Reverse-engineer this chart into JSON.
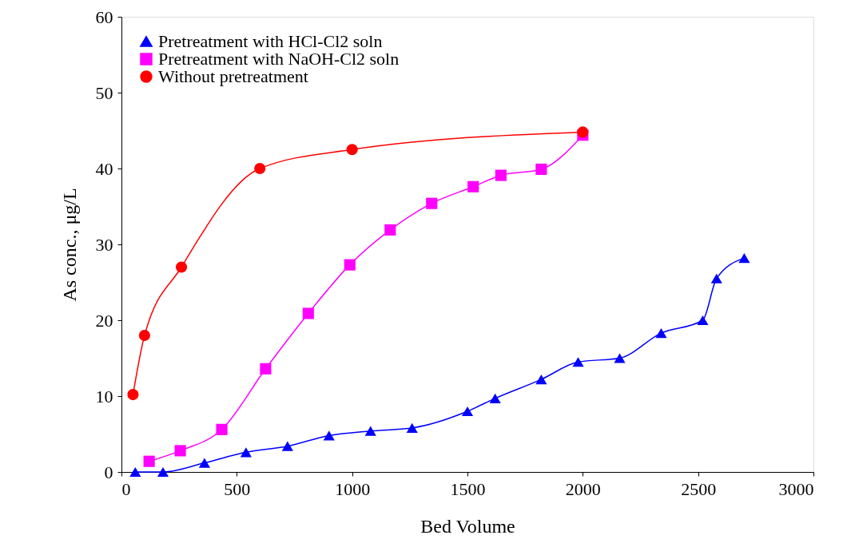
{
  "chart_data": {
    "type": "line",
    "xlabel": "Bed Volume",
    "ylabel": "As conc., μg/L",
    "xlim": [
      0,
      3000
    ],
    "xticks": [
      0,
      500,
      1000,
      1500,
      2000,
      2500,
      3000
    ],
    "ylim": [
      0,
      60
    ],
    "yticks": [
      0,
      10,
      20,
      30,
      40,
      50,
      60
    ],
    "grid": false,
    "legend": "top left",
    "line_style": "solid",
    "series": [
      {
        "name": "Pretreatment with HCl-Cl2 soln",
        "color": "#0000ff",
        "marker": "triangle",
        "x": [
          60,
          180,
          360,
          540,
          720,
          900,
          1080,
          1260,
          1500,
          1620,
          1820,
          1980,
          2160,
          2340,
          2520,
          2580,
          2700
        ],
        "values": [
          0,
          0,
          1.2,
          2.6,
          3.4,
          4.8,
          5.4,
          5.8,
          8,
          9.7,
          12.2,
          14.5,
          15,
          18.3,
          20,
          25.5,
          28.2
        ]
      },
      {
        "name": "Pretreatment with  NaOH-Cl2 soln",
        "color": "#ff00ff",
        "marker": "square",
        "x": [
          120,
          255,
          435,
          625,
          810,
          990,
          1165,
          1345,
          1525,
          1645,
          1820,
          2000
        ],
        "values": [
          1.4,
          2.8,
          5.6,
          13.6,
          20.9,
          27.3,
          31.9,
          35.4,
          37.6,
          39.1,
          39.9,
          44.4
        ]
      },
      {
        "name": "Without pretreatment",
        "color": "#ff0000",
        "marker": "circle",
        "x": [
          50,
          100,
          260,
          600,
          1000,
          2000
        ],
        "values": [
          10.2,
          18,
          27,
          40,
          42.5,
          44.8
        ]
      }
    ]
  }
}
